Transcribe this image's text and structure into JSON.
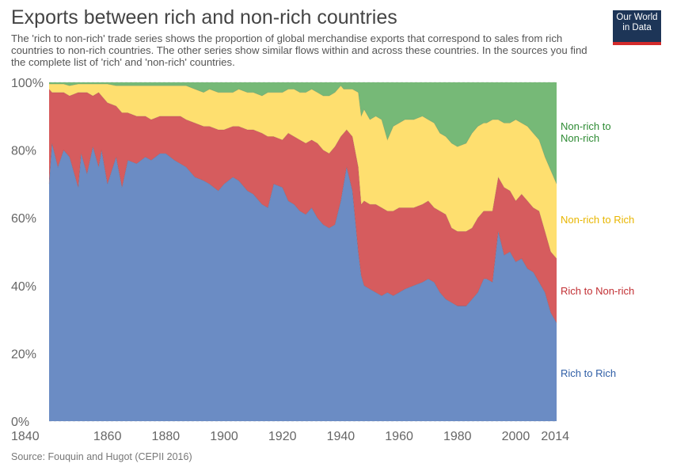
{
  "header": {
    "title": "Exports between rich and non-rich countries",
    "subtitle": "The 'rich to non-rich' trade series shows the proportion of global merchandise exports that correspond to sales from rich countries to non-rich countries. The other series show similar flows within and across these countries. In the sources you find the complete list of 'rich' and 'non-rich' countries."
  },
  "logo": {
    "line1": "Our World",
    "line2": "in Data"
  },
  "footer": {
    "source": "Source: Fouquin and Hugot (CEPII 2016)"
  },
  "chart_data": {
    "type": "area",
    "stacked": true,
    "x_ticks": [
      "1840",
      "1860",
      "1880",
      "1900",
      "1920",
      "1940",
      "1960",
      "1980",
      "2000",
      "2014"
    ],
    "x_tick_values": [
      1840,
      1860,
      1880,
      1900,
      1920,
      1940,
      1960,
      1980,
      2000,
      2014
    ],
    "y_ticks": [
      "0%",
      "20%",
      "40%",
      "60%",
      "80%",
      "100%"
    ],
    "y_tick_values": [
      0,
      20,
      40,
      60,
      80,
      100
    ],
    "xlim": [
      1840,
      2014
    ],
    "ylim": [
      0,
      100
    ],
    "grid": "horizontal",
    "legend": "right, labels beside series",
    "x": [
      1840,
      1841,
      1843,
      1845,
      1847,
      1850,
      1851,
      1853,
      1855,
      1857,
      1858,
      1860,
      1863,
      1865,
      1867,
      1870,
      1873,
      1875,
      1878,
      1880,
      1883,
      1885,
      1887,
      1890,
      1893,
      1895,
      1898,
      1900,
      1903,
      1905,
      1908,
      1910,
      1913,
      1915,
      1917,
      1920,
      1922,
      1924,
      1926,
      1928,
      1930,
      1932,
      1934,
      1936,
      1938,
      1940,
      1941,
      1942,
      1944,
      1946,
      1947,
      1948,
      1950,
      1952,
      1954,
      1956,
      1958,
      1960,
      1962,
      1965,
      1968,
      1970,
      1972,
      1974,
      1976,
      1978,
      1980,
      1983,
      1985,
      1987,
      1989,
      1990,
      1992,
      1994,
      1996,
      1998,
      2000,
      2002,
      2004,
      2006,
      2008,
      2010,
      2012,
      2014
    ],
    "series": [
      {
        "name": "Rich to Rich",
        "color": "#6b8cc4",
        "values": [
          70,
          82,
          75,
          80,
          78,
          69,
          79,
          73,
          81,
          75,
          80,
          70,
          78,
          69,
          77,
          76,
          78,
          77,
          79,
          79,
          77,
          76,
          75,
          72,
          71,
          70,
          68,
          70,
          72,
          71,
          68,
          67,
          64,
          63,
          70,
          69,
          65,
          64,
          62,
          61,
          63,
          60,
          58,
          57,
          58,
          65,
          70,
          75,
          68,
          50,
          43,
          40,
          39,
          38,
          37,
          38,
          37,
          38,
          39,
          40,
          41,
          42,
          41,
          38,
          36,
          35,
          34,
          34,
          36,
          38,
          42,
          42,
          41,
          56,
          49,
          50,
          47,
          48,
          45,
          44,
          41,
          38,
          32,
          29
        ]
      },
      {
        "name": "Rich to Non-rich",
        "color": "#d65c5e",
        "values": [
          28,
          15,
          22,
          17,
          18,
          28,
          18,
          24,
          15,
          22,
          16,
          24,
          15,
          22,
          14,
          14,
          12,
          12,
          11,
          11,
          13,
          14,
          14,
          16,
          16,
          17,
          18,
          16,
          15,
          16,
          18,
          19,
          21,
          21,
          14,
          14,
          20,
          20,
          21,
          21,
          20,
          22,
          22,
          22,
          23,
          19,
          15,
          11,
          16,
          25,
          21,
          25,
          25,
          26,
          26,
          24,
          25,
          25,
          24,
          23,
          23,
          23,
          22,
          24,
          25,
          22,
          22,
          22,
          21,
          22,
          20,
          20,
          21,
          16,
          20,
          18,
          18,
          19,
          20,
          19,
          21,
          18,
          18,
          19
        ]
      },
      {
        "name": "Non-rich to Rich",
        "color": "#fedf6f",
        "values": [
          1.5,
          2.5,
          2.5,
          2.5,
          3,
          2.5,
          2.5,
          2.5,
          3.5,
          2.5,
          3.5,
          5.5,
          6,
          8,
          8,
          9,
          9,
          10,
          9,
          9,
          9,
          9,
          10,
          10,
          10,
          11,
          11,
          11,
          10,
          11,
          11,
          11,
          11,
          13,
          13,
          14,
          13,
          14,
          14,
          15,
          15,
          15,
          16,
          17,
          16,
          15,
          13,
          12,
          14,
          22,
          26,
          27,
          25,
          26,
          26,
          21,
          25,
          25,
          26,
          26,
          26,
          24,
          25,
          23,
          23,
          25,
          25,
          26,
          28,
          27,
          26,
          26,
          27,
          17,
          19,
          20,
          24,
          21,
          22,
          22,
          21,
          22,
          24,
          22
        ]
      },
      {
        "name": "Non-rich to Non-rich",
        "color": "#76b977",
        "values": [
          0.5,
          0.5,
          0.5,
          0.5,
          1,
          0.5,
          0.5,
          0.5,
          0.5,
          0.5,
          0.5,
          0.5,
          1,
          1,
          1,
          1,
          1,
          1,
          1,
          1,
          1,
          1,
          1,
          2,
          3,
          2,
          3,
          3,
          3,
          2,
          3,
          3,
          4,
          3,
          3,
          3,
          2,
          2,
          3,
          3,
          2,
          3,
          4,
          4,
          3,
          1,
          2,
          2,
          2,
          3,
          10,
          8,
          11,
          10,
          11,
          17,
          13,
          12,
          11,
          11,
          10,
          11,
          12,
          15,
          16,
          18,
          19,
          18,
          15,
          13,
          12,
          12,
          11,
          11,
          12,
          12,
          11,
          12,
          13,
          15,
          17,
          22,
          26,
          30
        ]
      }
    ]
  }
}
